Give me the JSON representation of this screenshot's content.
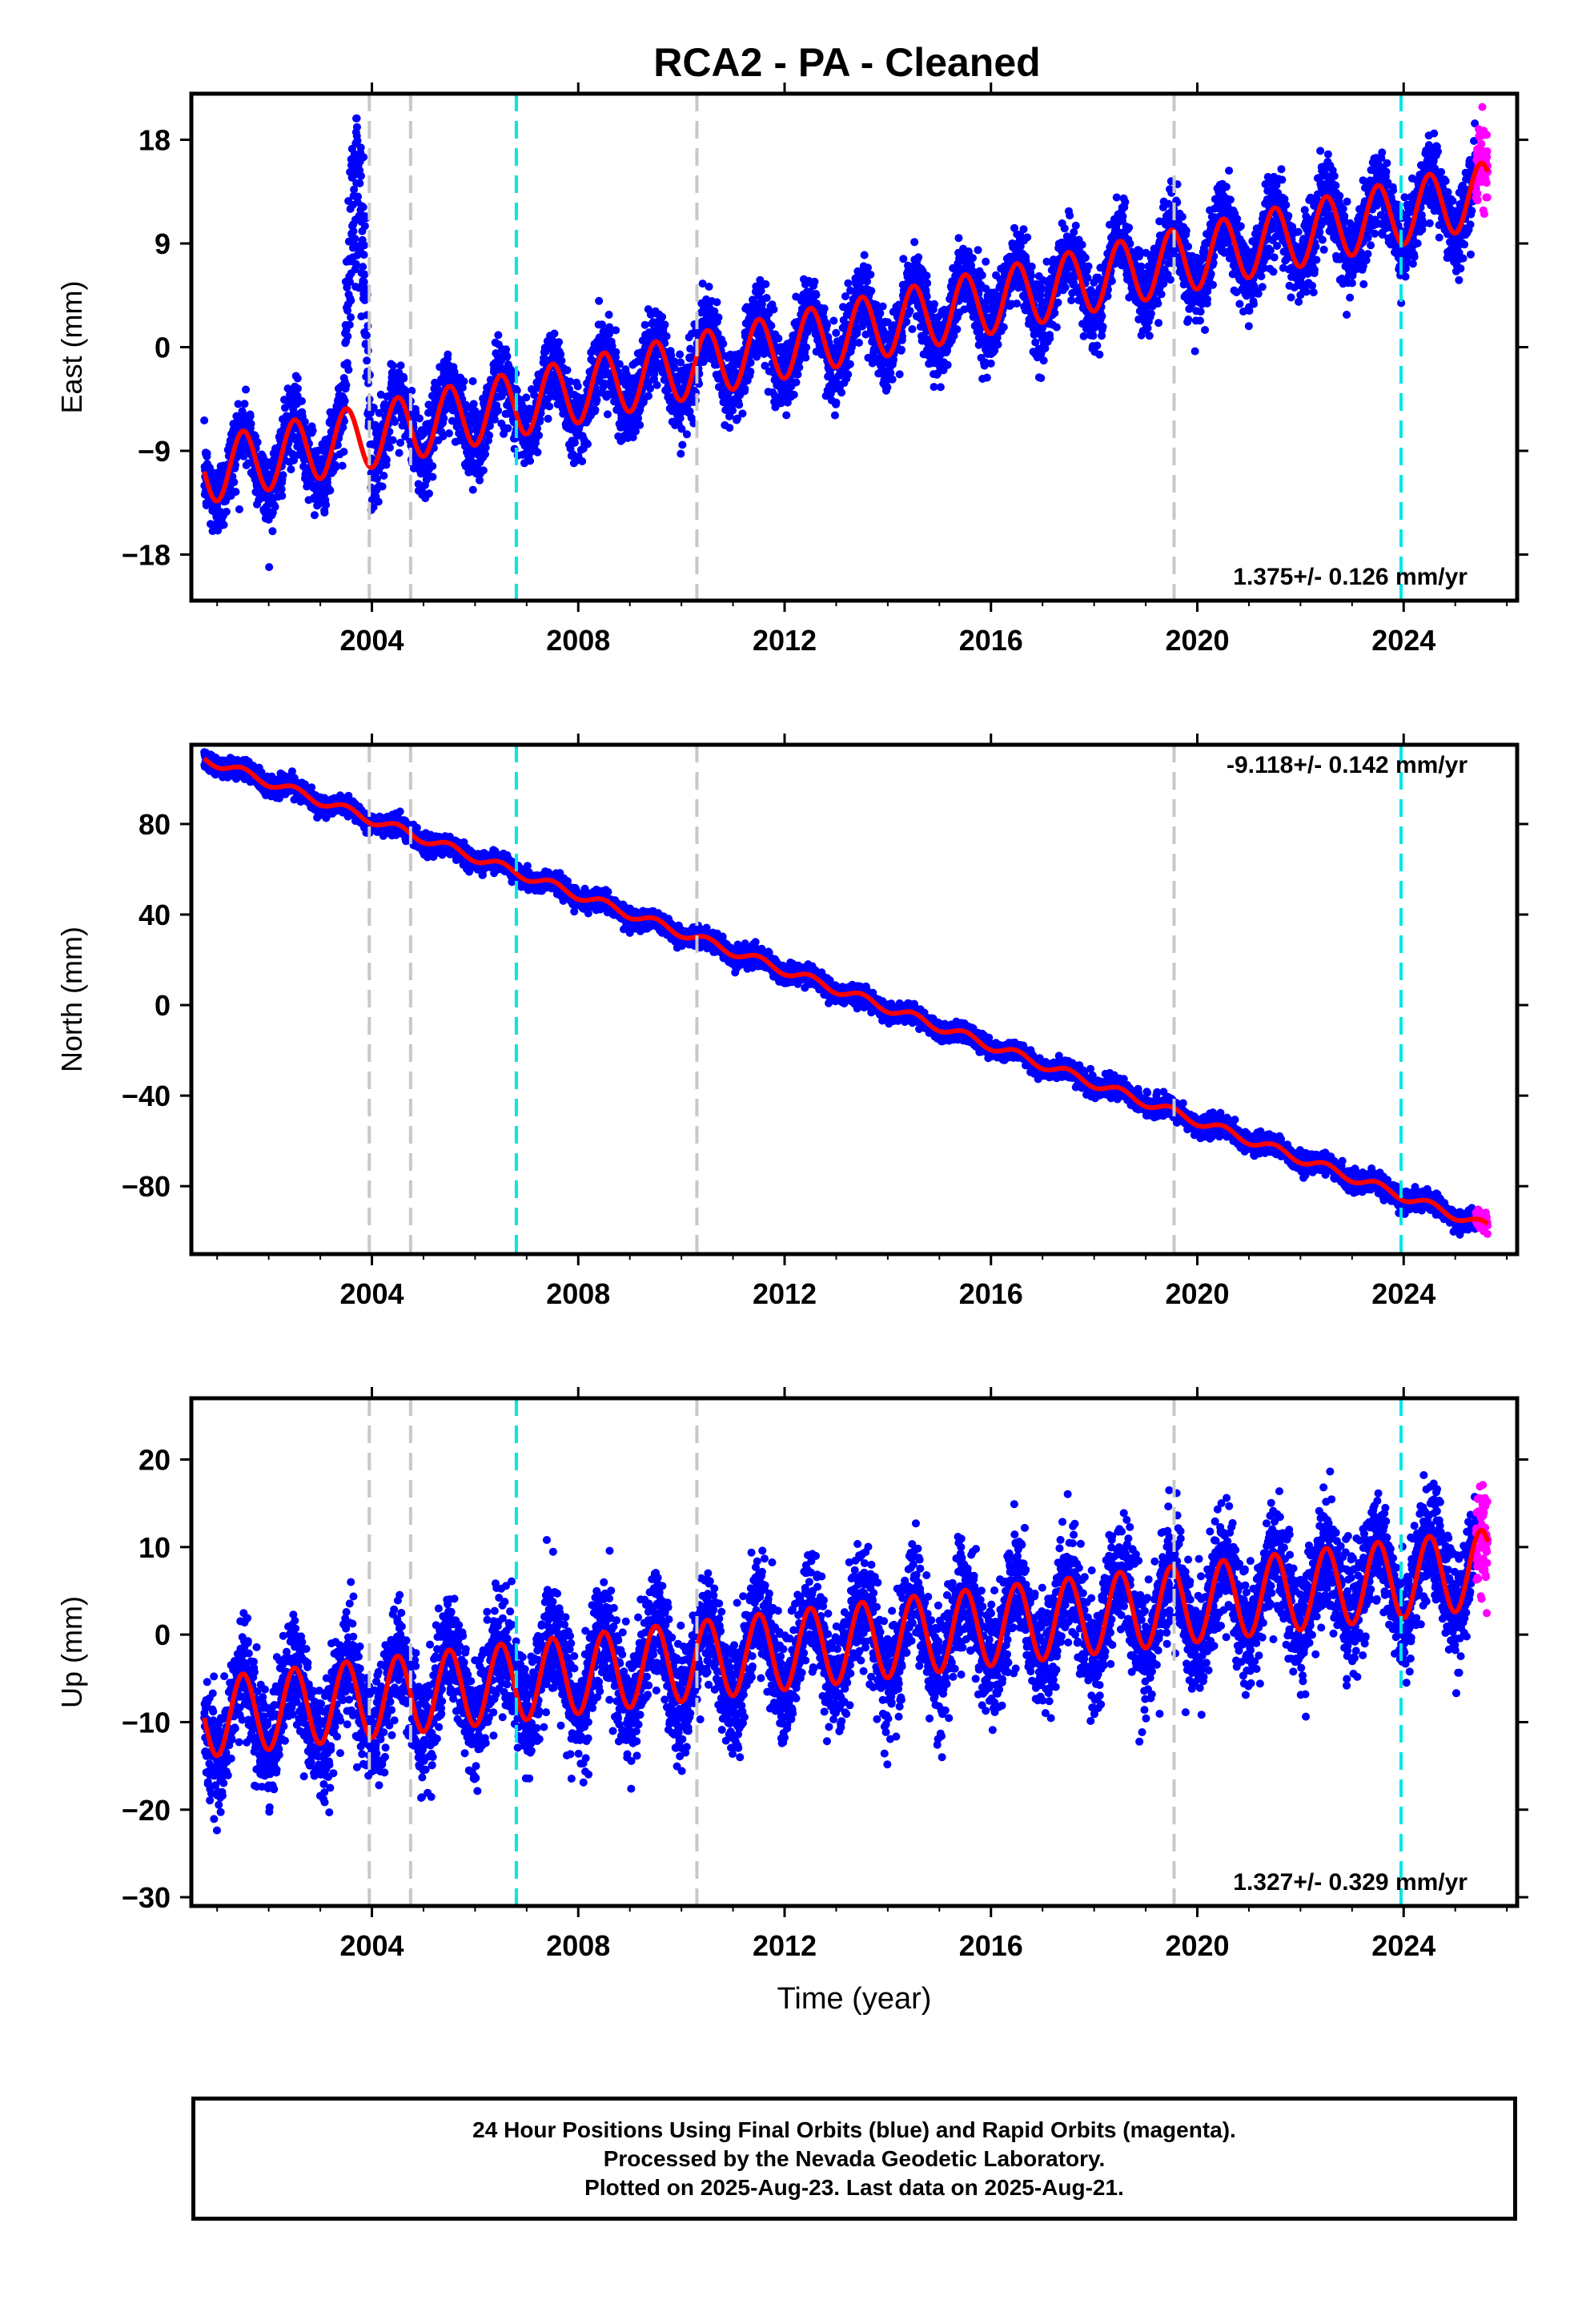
{
  "title": "RCA2  - PA - Cleaned",
  "footer": {
    "lines": [
      "24 Hour Positions Using Final Orbits (blue) and Rapid Orbits (magenta).",
      "Processed by the Nevada Geodetic Laboratory.",
      "Plotted on 2025-Aug-23. Last data on 2025-Aug-21."
    ]
  },
  "colors": {
    "final_orbits": "#0000ff",
    "rapid_orbits": "#ff00ff",
    "model_fit": "#ff0000",
    "equipment_change": "#c8c8c8",
    "earthquake": "#00e5e5"
  },
  "chart_data": [
    {
      "type": "scatter",
      "ylabel": "East (mm)",
      "xlabel": "",
      "rate_label": "1.375+/- 0.126 mm/yr",
      "rate_mm_per_yr": 1.375,
      "rate_sigma": 0.126,
      "xlim": [
        2000.5,
        2026.2
      ],
      "ylim": [
        -22,
        22
      ],
      "xticks": [
        2004,
        2008,
        2012,
        2016,
        2020,
        2024
      ],
      "yticks": [
        -18,
        -9,
        0,
        9,
        18
      ],
      "ytick_labels": [
        "−18",
        "−9",
        "0",
        "9",
        "18"
      ],
      "model": {
        "start": 2000.75,
        "start_value": -10.8,
        "end": 2025.63,
        "end_value": 13.3,
        "seasonal_amplitude": 2.8
      },
      "anomaly": {
        "start": 2003.45,
        "end": 2004.15,
        "peak_value": 19
      },
      "vertical_lines": [
        {
          "x": 2003.95,
          "kind": "equipment_change"
        },
        {
          "x": 2004.75,
          "kind": "equipment_change"
        },
        {
          "x": 2006.8,
          "kind": "earthquake"
        },
        {
          "x": 2010.3,
          "kind": "equipment_change"
        },
        {
          "x": 2019.55,
          "kind": "equipment_change"
        },
        {
          "x": 2023.95,
          "kind": "earthquake"
        }
      ],
      "rapid_segment": {
        "start": 2025.4,
        "end": 2025.63
      }
    },
    {
      "type": "scatter",
      "ylabel": "North (mm)",
      "xlabel": "",
      "rate_label": "-9.118+/- 0.142 mm/yr",
      "rate_mm_per_yr": -9.118,
      "rate_sigma": 0.142,
      "xlim": [
        2000.5,
        2026.2
      ],
      "ylim": [
        -110,
        115
      ],
      "xticks": [
        2004,
        2008,
        2012,
        2016,
        2020,
        2024
      ],
      "yticks": [
        -80,
        -40,
        0,
        40,
        80
      ],
      "ytick_labels": [
        "−80",
        "−40",
        "0",
        "40",
        "80"
      ],
      "model": {
        "start": 2000.75,
        "start_value": 109,
        "end": 2025.63,
        "end_value": -98,
        "seasonal_amplitude": 2.0
      },
      "vertical_lines": [
        {
          "x": 2003.95,
          "kind": "equipment_change"
        },
        {
          "x": 2004.75,
          "kind": "equipment_change"
        },
        {
          "x": 2006.8,
          "kind": "earthquake"
        },
        {
          "x": 2010.3,
          "kind": "equipment_change"
        },
        {
          "x": 2019.55,
          "kind": "equipment_change"
        },
        {
          "x": 2023.95,
          "kind": "earthquake"
        }
      ],
      "rapid_segment": {
        "start": 2025.4,
        "end": 2025.63
      }
    },
    {
      "type": "scatter",
      "ylabel": "Up (mm)",
      "xlabel": "Time (year)",
      "rate_label": "1.327+/- 0.329 mm/yr",
      "rate_mm_per_yr": 1.327,
      "rate_sigma": 0.329,
      "xlim": [
        2000.5,
        2026.2
      ],
      "ylim": [
        -31,
        27
      ],
      "xticks": [
        2004,
        2008,
        2012,
        2016,
        2020,
        2024
      ],
      "yticks": [
        -30,
        -20,
        -10,
        0,
        10,
        20
      ],
      "ytick_labels": [
        "−30",
        "−20",
        "−10",
        "0",
        "10",
        "20"
      ],
      "model": {
        "start": 2000.75,
        "start_value": -9.5,
        "end": 2025.63,
        "end_value": 7.5,
        "seasonal_amplitude": 4.5
      },
      "vertical_lines": [
        {
          "x": 2003.95,
          "kind": "equipment_change"
        },
        {
          "x": 2004.75,
          "kind": "equipment_change"
        },
        {
          "x": 2006.8,
          "kind": "earthquake"
        },
        {
          "x": 2010.3,
          "kind": "equipment_change"
        },
        {
          "x": 2019.55,
          "kind": "equipment_change"
        },
        {
          "x": 2023.95,
          "kind": "earthquake"
        }
      ],
      "rapid_segment": {
        "start": 2025.4,
        "end": 2025.63
      }
    }
  ]
}
